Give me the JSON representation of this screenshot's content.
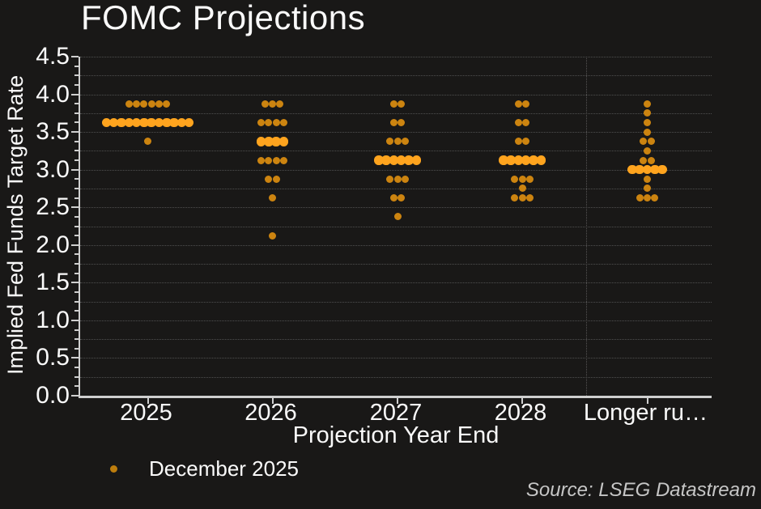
{
  "title": "FOMC Projections",
  "source": "Source: LSEG Datastream",
  "legend": {
    "label": "December 2025"
  },
  "colors": {
    "background": "#191817",
    "text": "#fafafa",
    "axis": "#cfcfcf",
    "grid": "#4f4f4f",
    "dot": "#cc8410",
    "dot_median": "#ffa41e",
    "legend_dot": "#bd7d0d",
    "source_text": "#c6c6c6"
  },
  "chart_data": {
    "type": "scatter",
    "subtype": "fomc-dot-plot",
    "title": "FOMC Projections",
    "xlabel": "Projection Year End",
    "ylabel": "Implied Fed Funds Target Rate",
    "ylim": [
      0.0,
      4.5
    ],
    "y_tick_labels": [
      "0.0",
      "0.5",
      "1.0",
      "1.5",
      "2.0",
      "2.5",
      "3.0",
      "3.5",
      "4.0",
      "4.5"
    ],
    "grid_step": 0.25,
    "minor_tick_step": 0.125,
    "grid": "dotted",
    "legend_position": "bottom-left",
    "categories": [
      "2025",
      "2026",
      "2027",
      "2028",
      "Longer ru…"
    ],
    "dots_per_category": 19,
    "series": [
      {
        "category": "2025",
        "dots": [
          {
            "rate": 3.875,
            "count": 6
          },
          {
            "rate": 3.625,
            "count": 12,
            "median": true
          },
          {
            "rate": 3.375,
            "count": 1
          }
        ]
      },
      {
        "category": "2026",
        "dots": [
          {
            "rate": 3.875,
            "count": 3
          },
          {
            "rate": 3.625,
            "count": 4
          },
          {
            "rate": 3.375,
            "count": 4,
            "median": true
          },
          {
            "rate": 3.125,
            "count": 4
          },
          {
            "rate": 2.875,
            "count": 2
          },
          {
            "rate": 2.625,
            "count": 1
          },
          {
            "rate": 2.125,
            "count": 1
          }
        ]
      },
      {
        "category": "2027",
        "dots": [
          {
            "rate": 3.875,
            "count": 2
          },
          {
            "rate": 3.625,
            "count": 2
          },
          {
            "rate": 3.375,
            "count": 3
          },
          {
            "rate": 3.125,
            "count": 6,
            "median": true
          },
          {
            "rate": 2.875,
            "count": 3
          },
          {
            "rate": 2.625,
            "count": 2
          },
          {
            "rate": 2.375,
            "count": 1
          }
        ]
      },
      {
        "category": "2028",
        "dots": [
          {
            "rate": 3.875,
            "count": 2
          },
          {
            "rate": 3.625,
            "count": 2
          },
          {
            "rate": 3.375,
            "count": 2
          },
          {
            "rate": 3.125,
            "count": 6,
            "median": true
          },
          {
            "rate": 2.875,
            "count": 3
          },
          {
            "rate": 2.75,
            "count": 1
          },
          {
            "rate": 2.625,
            "count": 3
          }
        ]
      },
      {
        "category": "Longer ru…",
        "dots": [
          {
            "rate": 3.875,
            "count": 1
          },
          {
            "rate": 3.75,
            "count": 1
          },
          {
            "rate": 3.625,
            "count": 1
          },
          {
            "rate": 3.5,
            "count": 1
          },
          {
            "rate": 3.375,
            "count": 2
          },
          {
            "rate": 3.25,
            "count": 1
          },
          {
            "rate": 3.125,
            "count": 2
          },
          {
            "rate": 3.0,
            "count": 5,
            "median": true
          },
          {
            "rate": 2.875,
            "count": 1
          },
          {
            "rate": 2.75,
            "count": 1
          },
          {
            "rate": 2.625,
            "count": 3
          }
        ]
      }
    ]
  }
}
